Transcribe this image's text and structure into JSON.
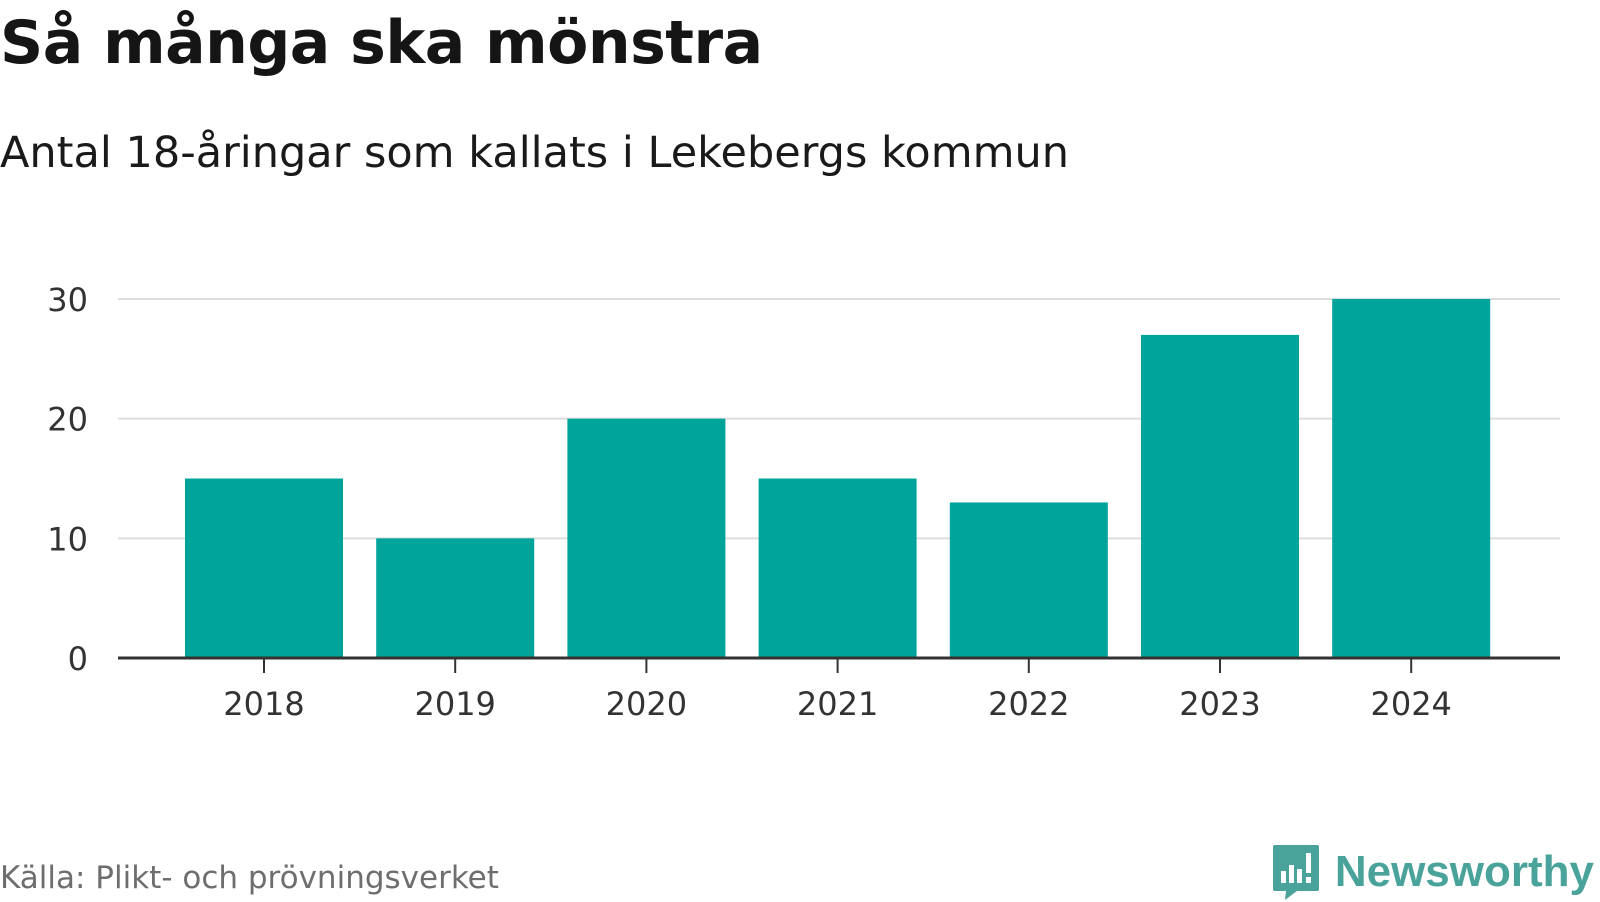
{
  "header": {
    "title": "Så många ska mönstra",
    "subtitle": "Antal 18-åringar som kallats i Lekebergs kommun"
  },
  "footer": {
    "source": "Källa: Plikt- och prövningsverket",
    "brand": "Newsworthy",
    "brand_icon": "newsworthy-logo-icon"
  },
  "colors": {
    "bar": "#00a49b",
    "grid": "#dddddd",
    "axis": "#333333",
    "brand": "#4aa39a"
  },
  "chart_data": {
    "type": "bar",
    "title": "Så många ska mönstra",
    "subtitle": "Antal 18-åringar som kallats i Lekebergs kommun",
    "xlabel": "",
    "ylabel": "",
    "categories": [
      "2018",
      "2019",
      "2020",
      "2021",
      "2022",
      "2023",
      "2024"
    ],
    "values": [
      15,
      10,
      20,
      15,
      13,
      27,
      30
    ],
    "ylim": [
      0,
      30
    ],
    "yticks": [
      0,
      10,
      20,
      30
    ],
    "grid": true,
    "legend": "none"
  }
}
